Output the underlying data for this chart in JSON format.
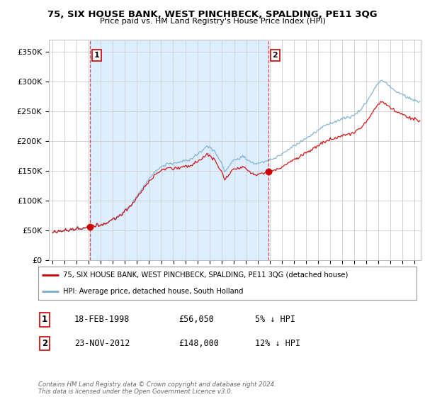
{
  "title": "75, SIX HOUSE BANK, WEST PINCHBECK, SPALDING, PE11 3QG",
  "subtitle": "Price paid vs. HM Land Registry's House Price Index (HPI)",
  "legend_line1": "75, SIX HOUSE BANK, WEST PINCHBECK, SPALDING, PE11 3QG (detached house)",
  "legend_line2": "HPI: Average price, detached house, South Holland",
  "transaction1_label": "1",
  "transaction1_date": "18-FEB-1998",
  "transaction1_price": "£56,050",
  "transaction1_hpi": "5% ↓ HPI",
  "transaction2_label": "2",
  "transaction2_date": "23-NOV-2012",
  "transaction2_price": "£148,000",
  "transaction2_hpi": "12% ↓ HPI",
  "footnote": "Contains HM Land Registry data © Crown copyright and database right 2024.\nThis data is licensed under the Open Government Licence v3.0.",
  "red_color": "#cc0000",
  "blue_color": "#7aadcf",
  "shade_color": "#ddeeff",
  "background_color": "#ffffff",
  "grid_color": "#cccccc",
  "ylim": [
    0,
    370000
  ],
  "yticks": [
    0,
    50000,
    100000,
    150000,
    200000,
    250000,
    300000,
    350000
  ],
  "ytick_labels": [
    "£0",
    "£50K",
    "£100K",
    "£150K",
    "£200K",
    "£250K",
    "£300K",
    "£350K"
  ],
  "sale1_x": 1998.13,
  "sale1_y": 56050,
  "sale2_x": 2012.9,
  "sale2_y": 148000,
  "xlim_left": 1994.7,
  "xlim_right": 2025.5
}
